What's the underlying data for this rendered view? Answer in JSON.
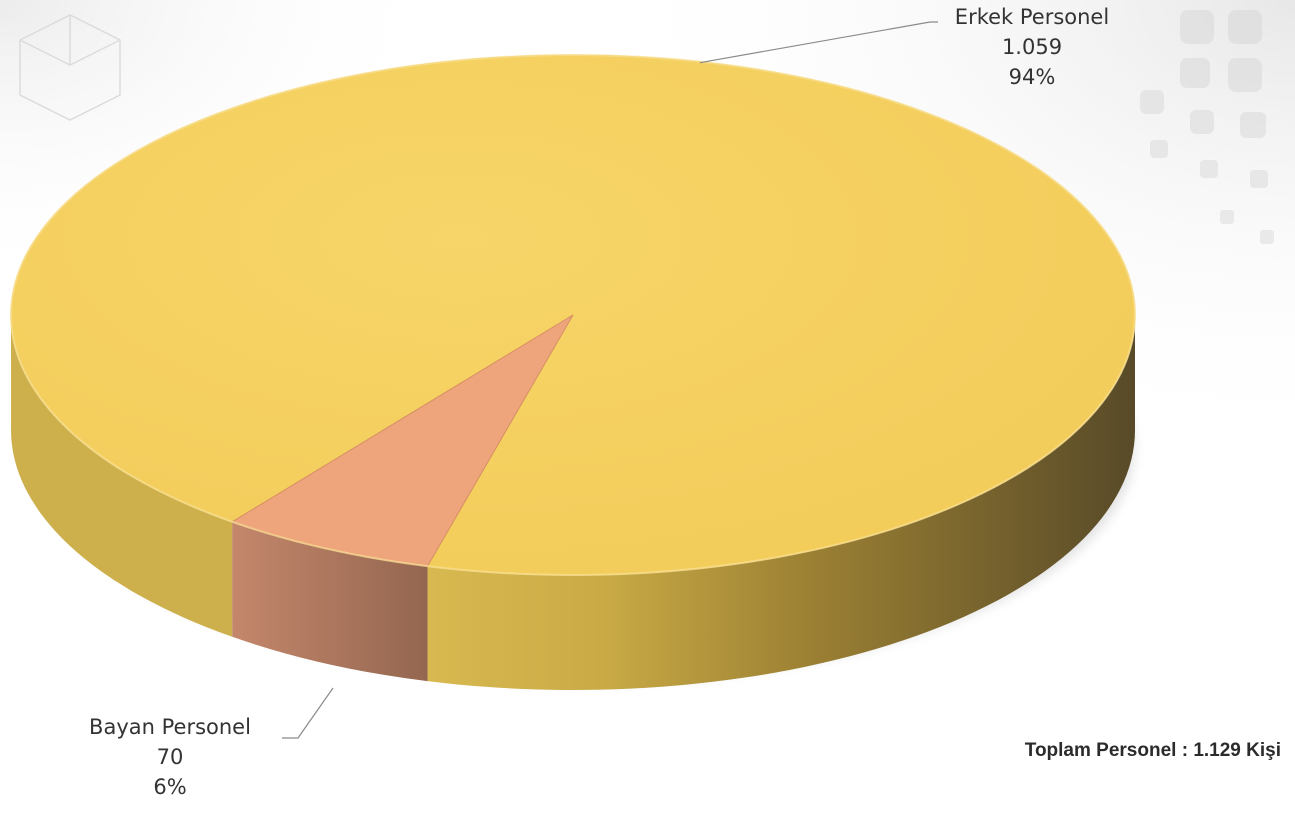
{
  "chart_data": {
    "type": "pie",
    "title": "",
    "slices": [
      {
        "name": "Erkek Personel",
        "value": 1059,
        "value_label": "1.059",
        "percent_label": "94%",
        "color": "#F5CE5E"
      },
      {
        "name": "Bayan Personel",
        "value": 70,
        "value_label": "70",
        "percent_label": "6%",
        "color": "#EFA57B"
      }
    ],
    "style": "3d-pie"
  },
  "total": {
    "text": "Toplam Personel : 1.129 Kişi"
  }
}
